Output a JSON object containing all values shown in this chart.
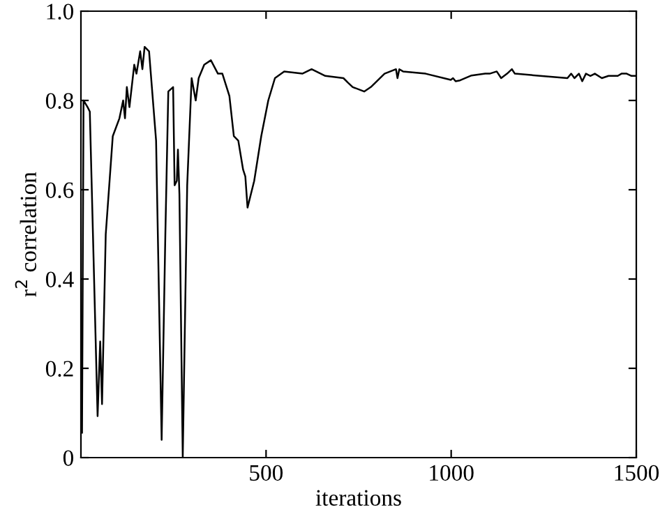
{
  "chart_data": {
    "type": "line",
    "xlabel": "iterations",
    "ylabel": "r$^{2}$ correlation",
    "x": [
      3,
      7,
      18,
      24,
      45,
      52,
      57,
      67,
      86,
      104,
      114,
      119,
      124,
      131,
      144,
      150,
      160,
      166,
      172,
      184,
      203,
      218,
      228,
      236,
      249,
      253,
      259,
      262,
      266,
      275,
      287,
      299,
      310,
      318,
      333,
      351,
      370,
      382,
      401,
      413,
      425,
      438,
      444,
      450,
      468,
      487,
      506,
      524,
      549,
      598,
      623,
      660,
      709,
      721,
      734,
      765,
      783,
      820,
      851,
      855,
      860,
      870,
      931,
      999,
      1005,
      1012,
      1024,
      1055,
      1092,
      1104,
      1123,
      1135,
      1151,
      1164,
      1172,
      1314,
      1324,
      1333,
      1345,
      1354,
      1364,
      1376,
      1388,
      1407,
      1425,
      1450,
      1460,
      1474,
      1487,
      1500
    ],
    "series": [
      {
        "color": "#000000",
        "values": [
          0.056,
          0.8,
          0.785,
          0.775,
          0.093,
          0.26,
          0.12,
          0.5,
          0.72,
          0.76,
          0.8,
          0.76,
          0.83,
          0.785,
          0.88,
          0.86,
          0.91,
          0.87,
          0.92,
          0.91,
          0.71,
          0.04,
          0.5,
          0.82,
          0.83,
          0.61,
          0.62,
          0.69,
          0.59,
          0.0,
          0.61,
          0.85,
          0.8,
          0.85,
          0.88,
          0.89,
          0.86,
          0.86,
          0.81,
          0.72,
          0.71,
          0.645,
          0.63,
          0.56,
          0.62,
          0.72,
          0.8,
          0.85,
          0.865,
          0.86,
          0.87,
          0.855,
          0.85,
          0.84,
          0.83,
          0.82,
          0.83,
          0.86,
          0.87,
          0.85,
          0.87,
          0.865,
          0.86,
          0.846,
          0.85,
          0.843,
          0.845,
          0.856,
          0.86,
          0.86,
          0.865,
          0.85,
          0.86,
          0.87,
          0.86,
          0.85,
          0.86,
          0.85,
          0.86,
          0.843,
          0.86,
          0.855,
          0.86,
          0.85,
          0.855,
          0.855,
          0.86,
          0.86,
          0.855,
          0.855
        ]
      }
    ],
    "xlim": [
      0,
      1500
    ],
    "xticks": [
      500,
      1000,
      1500
    ],
    "ylim": [
      0,
      1
    ],
    "yticks": [
      0,
      0.2,
      0.4,
      0.6,
      0.8,
      {
        "value": 1,
        "label": "1.0"
      }
    ],
    "grid": false,
    "legend": false,
    "marker": "none",
    "line_style": "solid"
  }
}
